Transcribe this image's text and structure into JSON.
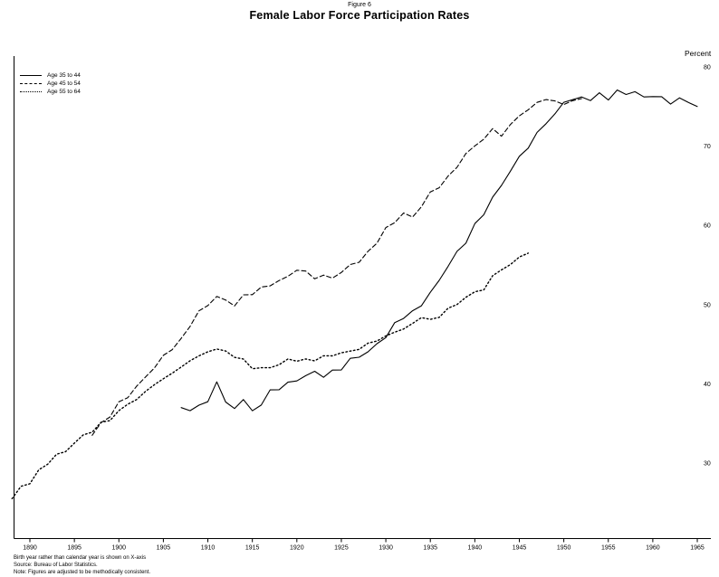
{
  "page": {
    "figure_label": "Figure 6",
    "title": "Female Labor Force Participation Rates"
  },
  "chart_data": {
    "type": "line",
    "title": "Female Labor Force Participation Rates",
    "figure_label": "Figure 6",
    "xlabel": "",
    "ylabel": "Percent",
    "xlim": [
      1887,
      1966
    ],
    "ylim": [
      20,
      80
    ],
    "grid": false,
    "legend_position": "top-left",
    "x_ticks": [
      1890,
      1895,
      1900,
      1905,
      1910,
      1915,
      1920,
      1925,
      1930,
      1935,
      1940,
      1945,
      1950,
      1955,
      1960,
      1965
    ],
    "y_ticks": [
      30,
      40,
      50,
      60,
      70,
      80
    ],
    "series": [
      {
        "name": "Age 35 to 44",
        "line_style": "solid",
        "start_year": 1907,
        "x_step": 1,
        "values": [
          37,
          36.5,
          37.5,
          37.5,
          40.5,
          37.5,
          37,
          38,
          36.5,
          37.5,
          39,
          39.5,
          40,
          40.5,
          41,
          41.5,
          41,
          41.5,
          42,
          43,
          43.5,
          44,
          45,
          46,
          47.5,
          48.5,
          49,
          50,
          51.5,
          53,
          55,
          56.5,
          58,
          60,
          61.5,
          63.5,
          65,
          67,
          68.5,
          70,
          71.5,
          73,
          74,
          75.5,
          76,
          76,
          76,
          76.5,
          76,
          77,
          76.5,
          77,
          76,
          76.5,
          76,
          75.5,
          76,
          75.5,
          75
        ]
      },
      {
        "name": "Age 45 to 54",
        "line_style": "dashed",
        "start_year": 1897,
        "x_step": 1,
        "values": [
          33.5,
          35,
          36,
          37.5,
          38.5,
          39.5,
          41,
          42,
          43.5,
          44.5,
          45.5,
          47.5,
          49,
          50,
          51,
          50.5,
          50,
          51,
          51.5,
          52,
          52.5,
          53,
          53.5,
          54.5,
          54,
          53.5,
          53.5,
          53.5,
          54,
          55,
          55.5,
          56.5,
          58,
          59.5,
          60.5,
          61.5,
          61,
          62.5,
          64,
          65,
          66,
          67.5,
          69,
          70,
          71,
          72,
          71.5,
          72.5,
          74,
          74.5,
          75.5,
          76,
          75.5,
          75.5,
          75.5,
          76
        ]
      },
      {
        "name": "Age 55 to 64",
        "line_style": "dotted",
        "start_year": 1888,
        "x_step": 1,
        "values": [
          25.5,
          27,
          27.5,
          29,
          30,
          31,
          31.5,
          32.5,
          33.5,
          34,
          35,
          35.5,
          36.5,
          37.5,
          38,
          39,
          40,
          40.5,
          41.5,
          42,
          43,
          43.5,
          44,
          44.5,
          44,
          43.5,
          43,
          42,
          42,
          42,
          42.5,
          43,
          43,
          43,
          43,
          43.5,
          43.5,
          44,
          44,
          44.5,
          45,
          45.5,
          46,
          46.5,
          47,
          47.5,
          48.5,
          48,
          48.5,
          49.5,
          50,
          51,
          51.5,
          52,
          53.5,
          54.5,
          55,
          56,
          56.5
        ]
      }
    ]
  },
  "footnotes": [
    "Birth year rather than calendar year is shown on X-axis",
    "Source: Bureau of Labor Statistics.",
    "Note: Figures are adjusted to be methodically consistent."
  ]
}
